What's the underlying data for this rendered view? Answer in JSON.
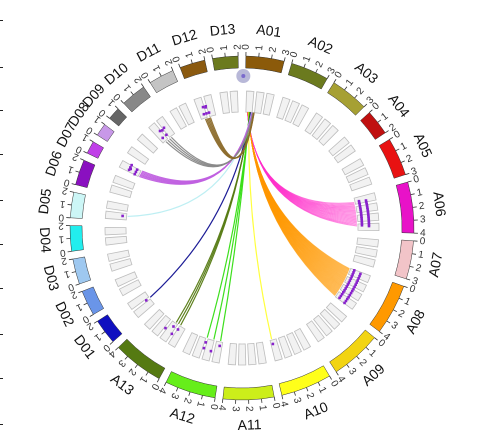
{
  "chart_data": {
    "type": "circos",
    "title": "",
    "chromosomes": [
      {
        "name": "A01",
        "size": 3,
        "color": "#8B5A0A"
      },
      {
        "name": "A02",
        "size": 3,
        "color": "#6B7A1E"
      },
      {
        "name": "A03",
        "size": 3,
        "color": "#A6A033"
      },
      {
        "name": "A04",
        "size": 2,
        "color": "#C01010"
      },
      {
        "name": "A05",
        "size": 3,
        "color": "#E81212"
      },
      {
        "name": "A06",
        "size": 4,
        "color": "#E812C8"
      },
      {
        "name": "A07",
        "size": 3,
        "color": "#F2C4C8"
      },
      {
        "name": "A08",
        "size": 4,
        "color": "#FF9900"
      },
      {
        "name": "A09",
        "size": 4,
        "color": "#F2D412"
      },
      {
        "name": "A10",
        "size": 4,
        "color": "#FFFF1A"
      },
      {
        "name": "A11",
        "size": 4,
        "color": "#CCEE1A"
      },
      {
        "name": "A12",
        "size": 4,
        "color": "#66EE1A"
      },
      {
        "name": "A13",
        "size": 4,
        "color": "#557A12"
      },
      {
        "name": "D01",
        "size": 2,
        "color": "#1010C0"
      },
      {
        "name": "D02",
        "size": 2,
        "color": "#6A95E8"
      },
      {
        "name": "D03",
        "size": 2,
        "color": "#9EC8F0"
      },
      {
        "name": "D04",
        "size": 2,
        "color": "#22EEEE"
      },
      {
        "name": "D05",
        "size": 2,
        "color": "#CCF6F6"
      },
      {
        "name": "D06",
        "size": 2,
        "color": "#8A10C0"
      },
      {
        "name": "D07",
        "size": 1,
        "color": "#C040E8"
      },
      {
        "name": "D08",
        "size": 1,
        "color": "#C898E8"
      },
      {
        "name": "D09",
        "size": 1,
        "color": "#666666"
      },
      {
        "name": "D10",
        "size": 2,
        "color": "#888888"
      },
      {
        "name": "D11",
        "size": 2,
        "color": "#C4C4C4"
      },
      {
        "name": "D12",
        "size": 2,
        "color": "#8B5A10"
      },
      {
        "name": "D13",
        "size": 2,
        "color": "#6B7A1E"
      }
    ],
    "links": [
      {
        "target": "A06",
        "pos": [
          0.6,
          3.4
        ],
        "count": 40,
        "color": "#FF33CC"
      },
      {
        "target": "A08",
        "pos": [
          0.2,
          3.8
        ],
        "count": 80,
        "color": "#FF9900"
      },
      {
        "target": "A10",
        "pos": [
          3.5,
          3.8
        ],
        "count": 1,
        "color": "#FFFF33"
      },
      {
        "target": "A12",
        "pos": [
          0.4,
          2.0
        ],
        "count": 3,
        "color": "#33DD11"
      },
      {
        "target": "A13",
        "pos": [
          0.8,
          1.4
        ],
        "count": 3,
        "color": "#557A12"
      },
      {
        "target": "D01",
        "pos": [
          0.5,
          1.5
        ],
        "count": 1,
        "color": "#101090"
      },
      {
        "target": "D05",
        "pos": [
          0.3,
          0.8
        ],
        "count": 1,
        "color": "#BBEEF2"
      },
      {
        "target": "D07",
        "pos": [
          0.2,
          0.9
        ],
        "count": 6,
        "color": "#C060E0"
      },
      {
        "target": "D10",
        "pos": [
          0.5,
          1.3
        ],
        "count": 4,
        "color": "#888888"
      },
      {
        "target": "D12",
        "pos": [
          0.6,
          1.2
        ],
        "count": 5,
        "color": "#8B6A2A"
      }
    ],
    "grid": true,
    "legend": "none"
  }
}
